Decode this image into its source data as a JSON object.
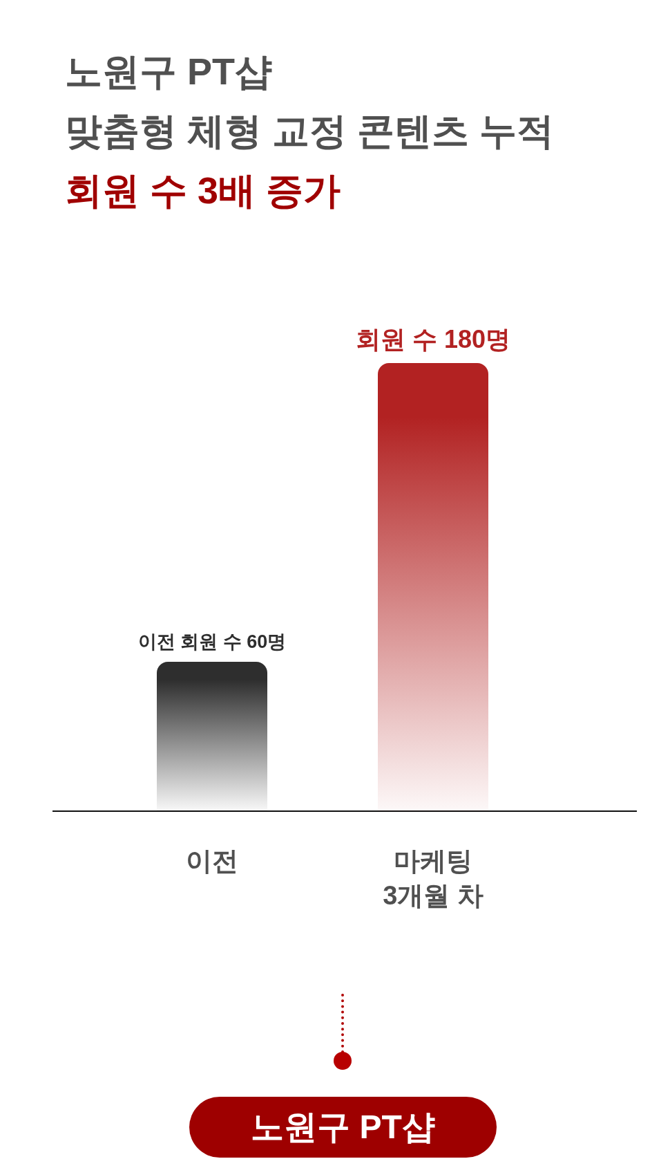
{
  "chart_data": {
    "type": "bar",
    "title": "노원구 PT샵\n맞춤형 체형 교정 콘텐츠 누적",
    "subtitle": "회원 수 3배 증가",
    "categories": [
      "이전",
      "마케팅\n3개월 차"
    ],
    "values": [
      60,
      180
    ],
    "colors": [
      "#2e2e2e",
      "#b22222"
    ],
    "value_labels": [
      "이전 회원 수 60명",
      "회원 수 180명"
    ],
    "annotations": [
      "노원구 PT샵"
    ]
  }
}
